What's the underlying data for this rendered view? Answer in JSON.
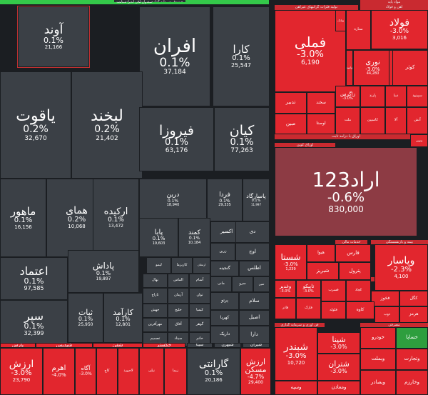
{
  "sections": [
    {
      "label": "صندوق های قابل معامله",
      "color": "#34c94a"
    },
    {
      "label": "صندوق سرمایه گذاری در اوراق با درآمد ثابت"
    },
    {
      "label": "مواد پایه"
    },
    {
      "label": "تولید فلزات گرانبهای غیرآهن"
    },
    {
      "label": "آهن و فولاد"
    },
    {
      "label": "اوراق با درآمد ثابت"
    },
    {
      "label": "اوراق کوپن"
    },
    {
      "label": "خدمات مالی"
    },
    {
      "label": "بیمه و بازنشستگی"
    },
    {
      "label": "واسطه گری مالی"
    },
    {
      "label": "فن آوری و سرمایه گذاری"
    },
    {
      "label": "انرژی"
    },
    {
      "label": "مصرفی"
    },
    {
      "label": "صنعتی"
    }
  ],
  "colors": {
    "bg": "#1b1e22",
    "neutral": "#3b4046",
    "down": "#e2262e",
    "down_dark": "#c3363c",
    "bond": "#8d3b44",
    "up": "#2e9e3e"
  },
  "tiles": [
    {
      "name": "آوند",
      "pct": "0.1%",
      "vol": "21,166"
    },
    {
      "name": "افران",
      "pct": "0.1%",
      "vol": "37,184"
    },
    {
      "name": "کارا",
      "pct": "0.1%",
      "vol": "25,547"
    },
    {
      "name": "یاقوت",
      "pct": "0.2%",
      "vol": "32,670"
    },
    {
      "name": "لبخند",
      "pct": "0.2%",
      "vol": "21,402"
    },
    {
      "name": "فیروزا",
      "pct": "0.1%",
      "vol": "63,176"
    },
    {
      "name": "کیان",
      "pct": "0.1%",
      "vol": "77,263"
    },
    {
      "name": "ماهور",
      "pct": "0.1%",
      "vol": "16,156"
    },
    {
      "name": "همای",
      "pct": "0.2%",
      "vol": "10,068"
    },
    {
      "name": "ارکیده",
      "pct": "0.1%",
      "vol": "13,472"
    },
    {
      "name": "درین",
      "pct": "0.1%",
      "vol": "18,940"
    },
    {
      "name": "فردا",
      "pct": "0.1%",
      "vol": "29,335"
    },
    {
      "name": "پاسارگاد",
      "pct": "0.1%",
      "vol": "11,997"
    },
    {
      "name": "پایا",
      "pct": "0.1%",
      "vol": "19,603"
    },
    {
      "name": "کمند",
      "pct": "0.1%",
      "vol": "10,184"
    },
    {
      "name": "اعتماد",
      "pct": "0.1%",
      "vol": "97,585"
    },
    {
      "name": "پاداش",
      "pct": "0.1%",
      "vol": "19,897"
    },
    {
      "name": "ثبات",
      "pct": "0.1%",
      "vol": "25,950"
    },
    {
      "name": "کارآمد",
      "pct": "0.1%",
      "vol": "12,801"
    },
    {
      "name": "سپر",
      "pct": "0.1%",
      "vol": "32,399"
    },
    {
      "name": "فولاد",
      "pct": "-3.0%",
      "vol": "3,016"
    },
    {
      "name": "فملی",
      "pct": "-3.0%",
      "vol": "6,190"
    },
    {
      "name": "نوری",
      "pct": "-3.0%",
      "vol": "44,280"
    },
    {
      "name": "فزر",
      "pct": "-3.0%",
      "vol": ""
    },
    {
      "name": "زاگرس",
      "pct": "-3.0%",
      "vol": ""
    },
    {
      "name": "اراد123",
      "pct": "-0.6%",
      "vol": "830,000"
    },
    {
      "name": "شستا",
      "pct": "-3.0%",
      "vol": "1,239"
    },
    {
      "name": "وپاسار",
      "pct": "-2.3%",
      "vol": "4,100"
    },
    {
      "name": "وغدیر",
      "pct": "-3.0%",
      "vol": ""
    },
    {
      "name": "تاپیکو",
      "pct": "-3.0%",
      "vol": ""
    },
    {
      "name": "ارزش",
      "pct": "-3.0%",
      "vol": "23,790"
    },
    {
      "name": "اهرم",
      "pct": "-4.0%",
      "vol": ""
    },
    {
      "name": "آگاه",
      "pct": "-3.0%",
      "vol": ""
    },
    {
      "name": "گارانتی",
      "pct": "0.1%",
      "vol": "20,186"
    },
    {
      "name": "ارزش مسکن",
      "pct": "-4.7%",
      "vol": "29,400"
    },
    {
      "name": "شبندر",
      "pct": "-3.0%",
      "vol": "10,720"
    },
    {
      "name": "شپنا",
      "pct": "-3.0%",
      "vol": ""
    },
    {
      "name": "شتران",
      "pct": "-3.0%",
      "vol": ""
    }
  ],
  "small": [
    "لیمو",
    "کاریزما",
    "ارمغان",
    "زرین",
    "اوج",
    "نهال",
    "الماس",
    "آسام",
    "گنجینه",
    "اطلس",
    "تاراج",
    "آرمان",
    "توان",
    "مانی",
    "سرو",
    "ثمین",
    "جهش",
    "خلیج",
    "کیمیا",
    "پرتو",
    "سلام",
    "مهرآفرین",
    "آفاق",
    "گوهر",
    "کهربا",
    "اصیل",
    "تصمیم",
    "سیناد",
    "خاتم",
    "داریک",
    "دارا",
    "کاج",
    "لاجورد",
    "نیلی",
    "زیما",
    "اکسیر",
    "سلاح",
    "تدبیر",
    "سخند",
    "ملت",
    "پارند",
    "دیبا",
    "سپینود",
    "کاسپین",
    "آلا",
    "آتش",
    "اوصتا",
    "مبین",
    "ستاره",
    "کوثر",
    "هیوا",
    "فارس",
    "شبریز",
    "پترول",
    "فخوز",
    "کگل",
    "فسرب",
    "کچاد",
    "فاذر",
    "فارک",
    "فلوله",
    "کاوه",
    "ذوب",
    "هرمز",
    "خودرو",
    "خساپا",
    "وبملت",
    "وتجارت",
    "وبصادر",
    "وخارزم",
    "ومعادن",
    "وسپه",
    "وبانک",
    "وامید",
    "ونوین",
    "دی",
    "شبهرن",
    "شیران",
    "پارس",
    "شپدیس",
    "شفن",
    "خگستر",
    "سیتا",
    "پکرمان"
  ],
  "labels": {
    "group_a": "اوراق کوپن",
    "group_b": "اوراق با درآمد ثابت"
  }
}
